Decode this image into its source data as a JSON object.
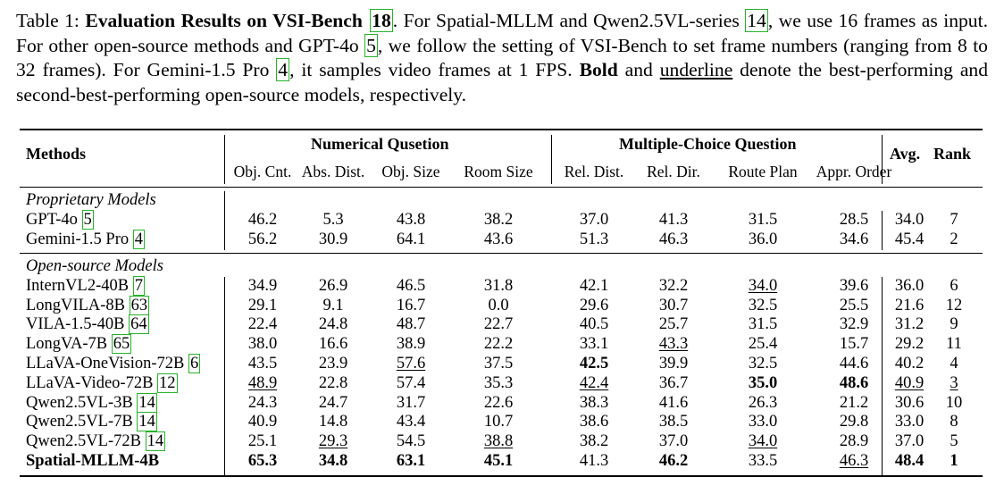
{
  "caption": {
    "label": "Table 1:",
    "title": "Evaluation Results on VSI-Bench",
    "title_ref": "18",
    "p1": ". For Spatial-MLLM and Qwen2.5VL-series ",
    "ref14": "14",
    "p2": ", we use 16 frames as input. For other open-source methods and GPT-4o ",
    "ref5": "5",
    "p3": ", we follow the setting of VSI-Bench to set frame numbers (ranging from 8 to 32 frames). For Gemini-1.5 Pro ",
    "ref4": "4",
    "p4": ", it samples video frames at 1 FPS. ",
    "bold_word": "Bold",
    "p5": " and ",
    "underline_word": "underline",
    "p6": " denote the best-performing and second-best-performing open-source models, respectively."
  },
  "header": {
    "methods": "Methods",
    "group_numerical": "Numerical Qusetion",
    "group_mc": "Multiple-Choice Question",
    "avg": "Avg.",
    "rank": "Rank",
    "columns": [
      "Obj. Cnt.",
      "Abs. Dist.",
      "Obj. Size",
      "Room Size",
      "Rel. Dist.",
      "Rel. Dir.",
      "Route Plan",
      "Appr. Order"
    ]
  },
  "sections": [
    {
      "label": "Proprietary Models",
      "rows": [
        {
          "name": "GPT-4o",
          "ref": "5",
          "values": [
            "46.2",
            "5.3",
            "43.8",
            "38.2",
            "37.0",
            "41.3",
            "31.5",
            "28.5"
          ],
          "avg": "34.0",
          "rank": "7"
        },
        {
          "name": "Gemini-1.5 Pro",
          "ref": "4",
          "values": [
            "56.2",
            "30.9",
            "64.1",
            "43.6",
            "51.3",
            "46.3",
            "36.0",
            "34.6"
          ],
          "avg": "45.4",
          "rank": "2"
        }
      ]
    },
    {
      "label": "Open-source Models",
      "rows": [
        {
          "name": "InternVL2-40B",
          "ref": "7",
          "values": [
            "34.9",
            "26.9",
            "46.5",
            "31.8",
            "42.1",
            "32.2",
            "34.0",
            "39.6"
          ],
          "avg": "36.0",
          "rank": "6"
        },
        {
          "name": "LongVILA-8B",
          "ref": "63",
          "values": [
            "29.1",
            "9.1",
            "16.7",
            "0.0",
            "29.6",
            "30.7",
            "32.5",
            "25.5"
          ],
          "avg": "21.6",
          "rank": "12"
        },
        {
          "name": "VILA-1.5-40B",
          "ref": "64",
          "values": [
            "22.4",
            "24.8",
            "48.7",
            "22.7",
            "40.5",
            "25.7",
            "31.5",
            "32.9"
          ],
          "avg": "31.2",
          "rank": "9"
        },
        {
          "name": "LongVA-7B",
          "ref": "65",
          "values": [
            "38.0",
            "16.6",
            "38.9",
            "22.2",
            "33.1",
            "43.3",
            "25.4",
            "15.7"
          ],
          "avg": "29.2",
          "rank": "11"
        },
        {
          "name": "LLaVA-OneVision-72B",
          "ref": "6",
          "values": [
            "43.5",
            "23.9",
            "57.6",
            "37.5",
            "42.5",
            "39.9",
            "32.5",
            "44.6"
          ],
          "avg": "40.2",
          "rank": "4"
        },
        {
          "name": "LLaVA-Video-72B",
          "ref": "12",
          "values": [
            "48.9",
            "22.8",
            "57.4",
            "35.3",
            "42.4",
            "36.7",
            "35.0",
            "48.6"
          ],
          "avg": "40.9",
          "rank": "3"
        },
        {
          "name": "Qwen2.5VL-3B",
          "ref": "14",
          "values": [
            "24.3",
            "24.7",
            "31.7",
            "22.6",
            "38.3",
            "41.6",
            "26.3",
            "21.2"
          ],
          "avg": "30.6",
          "rank": "10"
        },
        {
          "name": "Qwen2.5VL-7B",
          "ref": "14",
          "values": [
            "40.9",
            "14.8",
            "43.4",
            "10.7",
            "38.6",
            "38.5",
            "33.0",
            "29.8"
          ],
          "avg": "33.0",
          "rank": "8"
        },
        {
          "name": "Qwen2.5VL-72B",
          "ref": "14",
          "values": [
            "25.1",
            "29.3",
            "54.5",
            "38.8",
            "38.2",
            "37.0",
            "34.0",
            "28.9"
          ],
          "avg": "37.0",
          "rank": "5"
        },
        {
          "name": "Spatial-MLLM-4B",
          "ref": "",
          "values": [
            "65.3",
            "34.8",
            "63.1",
            "45.1",
            "41.3",
            "46.2",
            "33.5",
            "46.3"
          ],
          "avg": "48.4",
          "rank": "1"
        }
      ]
    }
  ],
  "formatting": {
    "bold": [
      "Open-source Models|LLaVA-OneVision-72B|Rel. Dist.",
      "Open-source Models|LLaVA-Video-72B|Route Plan",
      "Open-source Models|LLaVA-Video-72B|Appr. Order",
      "Open-source Models|Spatial-MLLM-4B|*"
    ],
    "bold_cells": {
      "LLaVA-OneVision-72B": [
        4
      ],
      "LLaVA-Video-72B": [
        6,
        7
      ],
      "Spatial-MLLM-4B": [
        0,
        1,
        2,
        3,
        5,
        "name",
        "avg",
        "rank"
      ]
    },
    "underline_cells": {
      "InternVL2-40B": [
        6
      ],
      "LongVA-7B": [
        5
      ],
      "LLaVA-OneVision-72B": [
        2
      ],
      "LLaVA-Video-72B": [
        0,
        4,
        "avg",
        "rank"
      ],
      "Qwen2.5VL-72B": [
        1,
        3,
        6
      ],
      "Spatial-MLLM-4B": [
        7
      ]
    },
    "ref_box_color": "#27b32a"
  }
}
